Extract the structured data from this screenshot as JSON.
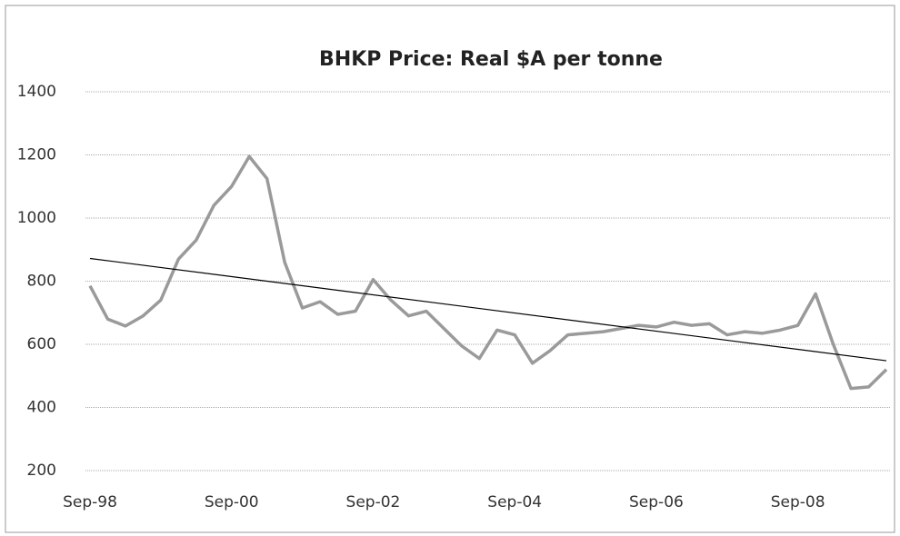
{
  "chart_data": {
    "type": "line",
    "title": "BHKP Price: Real $A per tonne",
    "categories": [
      "Sep-98",
      null,
      null,
      null,
      null,
      null,
      null,
      null,
      "Sep-00",
      null,
      null,
      null,
      null,
      null,
      null,
      null,
      "Sep-02",
      null,
      null,
      null,
      null,
      null,
      null,
      null,
      "Sep-04",
      null,
      null,
      null,
      null,
      null,
      null,
      null,
      "Sep-06",
      null,
      null,
      null,
      null,
      null,
      null,
      null,
      "Sep-08",
      null,
      null,
      null,
      null,
      null
    ],
    "series": [
      {
        "color": "#9a9a9a",
        "values": [
          785,
          680,
          658,
          690,
          740,
          870,
          930,
          1040,
          1100,
          1195,
          1125,
          860,
          715,
          735,
          695,
          705,
          805,
          740,
          690,
          705,
          650,
          595,
          555,
          645,
          630,
          540,
          580,
          630,
          635,
          640,
          650,
          660,
          655,
          670,
          660,
          665,
          630,
          640,
          635,
          645,
          660,
          760,
          600,
          460,
          465,
          520
        ]
      }
    ],
    "trendline": {
      "color": "#000000",
      "start": 872,
      "end": 548
    },
    "ylim": [
      200,
      1400
    ],
    "yticks": [
      200,
      400,
      600,
      800,
      1000,
      1200,
      1400
    ],
    "grid": true
  }
}
